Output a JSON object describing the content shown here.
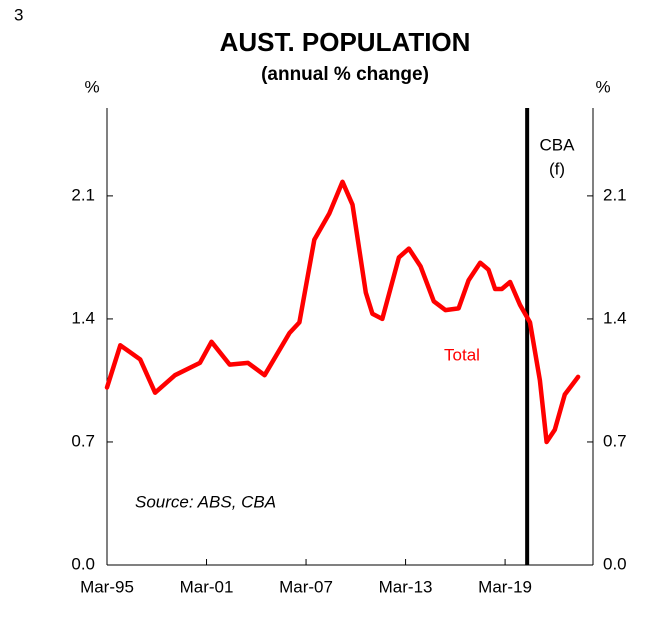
{
  "page_number": "3",
  "chart_data": {
    "type": "line",
    "title": "AUST. POPULATION",
    "subtitle": "(annual % change)",
    "y_unit_left": "%",
    "y_unit_right": "%",
    "source": "Source: ABS, CBA",
    "forecast_label": [
      "CBA",
      "(f)"
    ],
    "forecast_x": 2020.33,
    "xlim": [
      1995,
      2024.3
    ],
    "xticks": [
      {
        "value": 1995,
        "label": "Mar-95"
      },
      {
        "value": 2001,
        "label": "Mar-01"
      },
      {
        "value": 2007,
        "label": "Mar-07"
      },
      {
        "value": 2013,
        "label": "Mar-13"
      },
      {
        "value": 2019,
        "label": "Mar-19"
      }
    ],
    "ylim": [
      0,
      2.6
    ],
    "yticks": [
      {
        "value": 0,
        "label": "0.0"
      },
      0.7,
      1.4,
      2.1
    ],
    "y2lim": [
      0,
      2.6
    ],
    "y2ticks": [
      {
        "value": 0,
        "label": "0.0"
      },
      0.7,
      1.4,
      2.1
    ],
    "series": [
      {
        "name": "Total",
        "color": "#ff0000",
        "x": [
          1995.0,
          1995.8,
          1997.0,
          1997.9,
          1999.1,
          2000.6,
          2001.3,
          2002.4,
          2003.5,
          2004.5,
          2006.0,
          2006.6,
          2007.5,
          2008.4,
          2009.2,
          2009.8,
          2010.6,
          2011.0,
          2011.6,
          2012.6,
          2013.2,
          2013.9,
          2014.7,
          2015.4,
          2016.2,
          2016.8,
          2017.5,
          2018.0,
          2018.4,
          2018.8,
          2019.3,
          2019.9,
          2020.5,
          2021.1,
          2021.5,
          2022.0,
          2022.6,
          2023.4
        ],
        "values": [
          1.01,
          1.25,
          1.17,
          0.98,
          1.08,
          1.15,
          1.27,
          1.14,
          1.15,
          1.08,
          1.32,
          1.38,
          1.85,
          2.0,
          2.18,
          2.05,
          1.55,
          1.43,
          1.4,
          1.75,
          1.8,
          1.7,
          1.5,
          1.45,
          1.46,
          1.62,
          1.72,
          1.68,
          1.57,
          1.57,
          1.61,
          1.48,
          1.38,
          1.05,
          0.7,
          0.77,
          0.97,
          1.07
        ]
      }
    ]
  }
}
